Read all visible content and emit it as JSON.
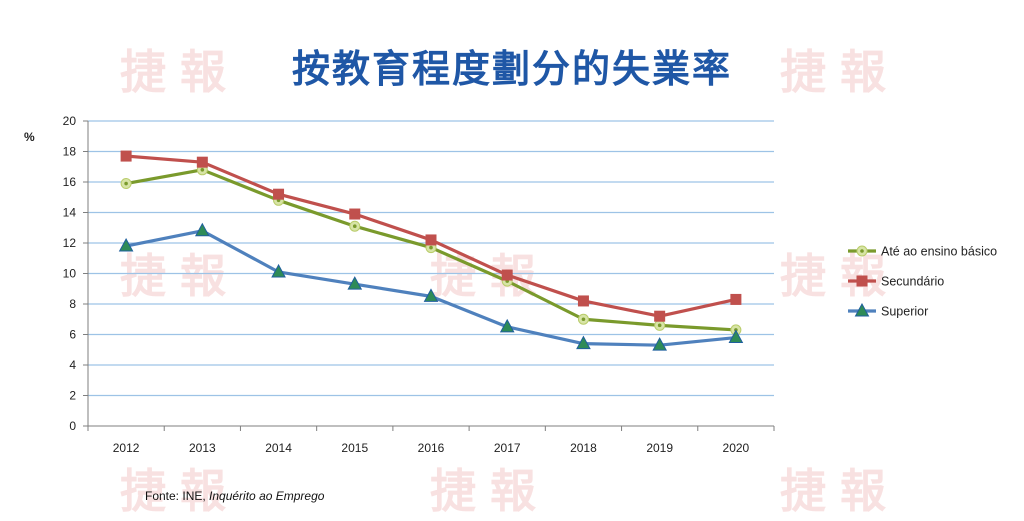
{
  "chart_data": {
    "type": "line",
    "title": "按教育程度劃分的失業率",
    "ylabel": "%",
    "xlabel": "",
    "ylim": [
      0,
      20
    ],
    "yticks": [
      0,
      2,
      4,
      6,
      8,
      10,
      12,
      14,
      16,
      18,
      20
    ],
    "categories": [
      "2012",
      "2013",
      "2014",
      "2015",
      "2016",
      "2017",
      "2018",
      "2019",
      "2020"
    ],
    "grid": true,
    "legend_position": "right",
    "series": [
      {
        "name": "Até ao ensino básico",
        "color": "#7a9a2c",
        "marker": "circle",
        "values": [
          15.9,
          16.8,
          14.8,
          13.1,
          11.7,
          9.5,
          7.0,
          6.6,
          6.3
        ]
      },
      {
        "name": "Secundário",
        "color": "#c0504d",
        "marker": "square",
        "values": [
          17.7,
          17.3,
          15.2,
          13.9,
          12.2,
          9.9,
          8.2,
          7.2,
          8.3
        ]
      },
      {
        "name": "Superior",
        "color": "#4f81bd",
        "marker": "triangle",
        "values": [
          11.8,
          12.8,
          10.1,
          9.3,
          8.5,
          6.5,
          5.4,
          5.3,
          5.8
        ]
      }
    ]
  },
  "source": {
    "prefix": "Fonte: INE, ",
    "italic": "Inquérito ao Emprego"
  },
  "watermark": "捷報"
}
